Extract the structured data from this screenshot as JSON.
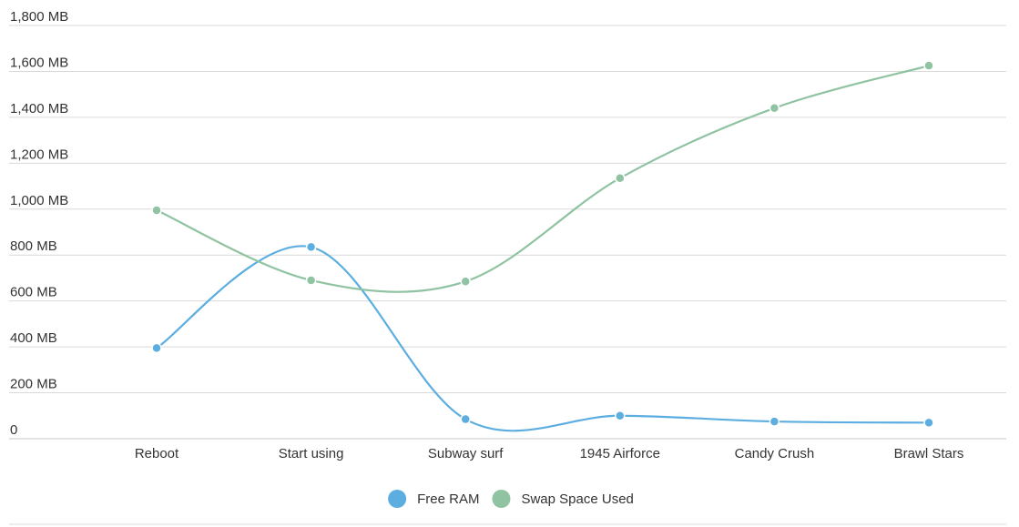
{
  "chart_data": {
    "type": "line",
    "title": "",
    "xlabel": "",
    "ylabel": "",
    "categories": [
      "Reboot",
      "Start using",
      "Subway surf",
      "1945 Airforce",
      "Candy Crush",
      "Brawl Stars"
    ],
    "series": [
      {
        "name": "Free RAM",
        "color": "#5daee0",
        "values": [
          395,
          835,
          85,
          100,
          75,
          70
        ]
      },
      {
        "name": "Swap Space Used",
        "color": "#8fc3a1",
        "values": [
          995,
          690,
          685,
          1135,
          1440,
          1625
        ]
      }
    ],
    "ylim": [
      0,
      1800
    ],
    "y_ticks": [
      {
        "value": 1800,
        "label": "1,800 MB"
      },
      {
        "value": 1600,
        "label": "1,600 MB"
      },
      {
        "value": 1400,
        "label": "1,400 MB"
      },
      {
        "value": 1200,
        "label": "1,200 MB"
      },
      {
        "value": 1000,
        "label": "1,000 MB"
      },
      {
        "value": 800,
        "label": "800 MB"
      },
      {
        "value": 600,
        "label": "600 MB"
      },
      {
        "value": 400,
        "label": "400 MB"
      },
      {
        "value": 200,
        "label": "200 MB"
      },
      {
        "value": 0,
        "label": "0"
      }
    ],
    "grid": true,
    "legend_position": "bottom-center"
  }
}
